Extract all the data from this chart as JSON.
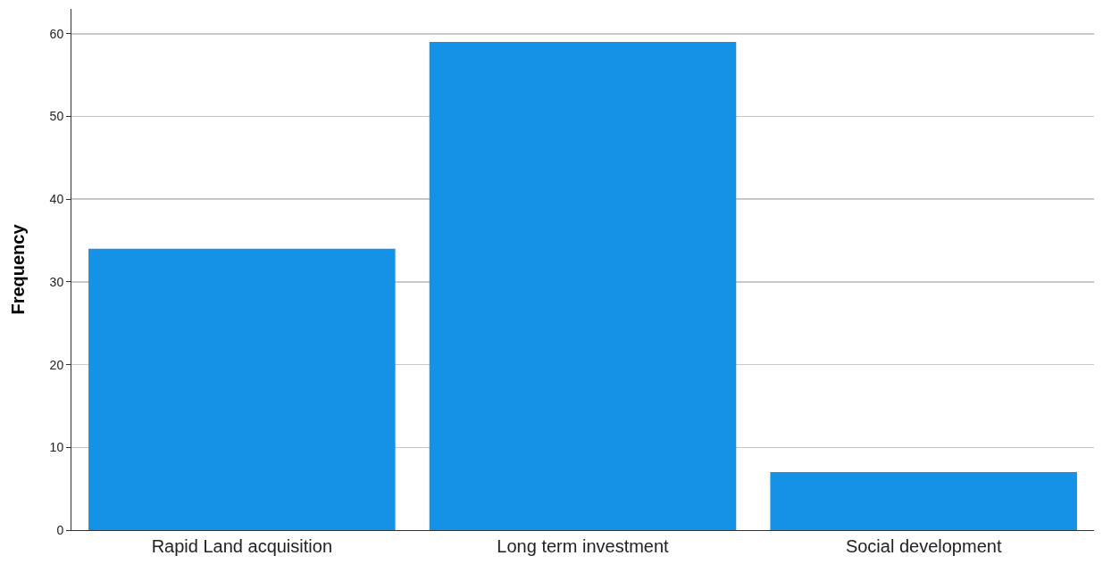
{
  "chart_data": {
    "type": "bar",
    "ylabel": "Frequency",
    "categories": [
      "Rapid Land acquisition",
      "Long term investment",
      "Social development"
    ],
    "values": [
      34,
      59,
      7
    ],
    "color": "#1591e6",
    "ylim": [
      0,
      63
    ],
    "yticks": [
      0,
      10,
      20,
      30,
      40,
      50,
      60
    ],
    "grid": "y"
  }
}
